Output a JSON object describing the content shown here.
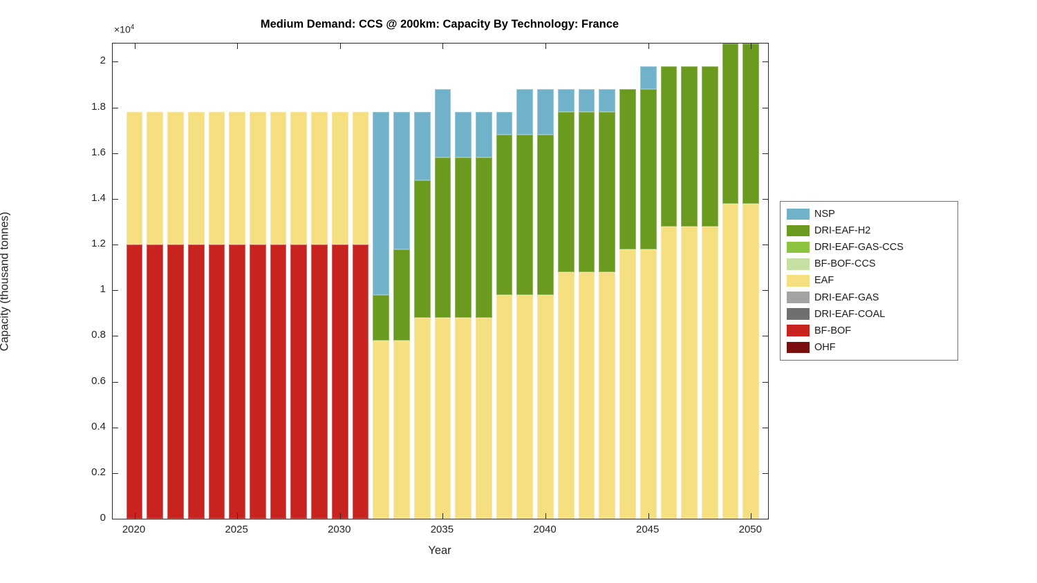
{
  "figure": {
    "title": "Medium Demand: CCS @ 200km: Capacity By Technology: France",
    "xlabel": "Year",
    "ylabel": "Capacity (thousand tonnes)",
    "y_multiplier_base": "×10",
    "y_multiplier_exp": "4"
  },
  "chart_data": {
    "type": "bar",
    "stacked": true,
    "title": "Medium Demand: CCS @ 200km: Capacity By Technology: France",
    "xlabel": "Year",
    "ylabel": "Capacity (thousand tonnes)",
    "y_unit_note": "axis labels are value/10^4 (×10^4 multiplier shown top-left)",
    "grid": false,
    "legend_position": "right-outside",
    "bar_width_fraction": 0.8,
    "xlim": [
      2018.94,
      2050.83
    ],
    "ylim": [
      0,
      20800
    ],
    "xticks": [
      2020,
      2025,
      2030,
      2035,
      2040,
      2045,
      2050
    ],
    "yticks": {
      "values": [
        0,
        2000,
        4000,
        6000,
        8000,
        10000,
        12000,
        14000,
        16000,
        18000,
        20000
      ],
      "labels": [
        "0",
        "0.2",
        "0.4",
        "0.6",
        "0.8",
        "1",
        "1.2",
        "1.4",
        "1.6",
        "1.8",
        "2"
      ]
    },
    "years": [
      2020,
      2021,
      2022,
      2023,
      2024,
      2025,
      2026,
      2027,
      2028,
      2029,
      2030,
      2031,
      2032,
      2033,
      2034,
      2035,
      2036,
      2037,
      2038,
      2039,
      2040,
      2041,
      2042,
      2043,
      2044,
      2045,
      2046,
      2047,
      2048,
      2049,
      2050
    ],
    "series_note": "series listed in legend order (top of visual stack first); stacking bottom-to-top is the reverse of this order",
    "series": [
      {
        "name": "NSP",
        "color": "#6FB2C9",
        "values": [
          0,
          0,
          0,
          0,
          0,
          0,
          0,
          0,
          0,
          0,
          0,
          0,
          8000,
          6000,
          3000,
          3000,
          2000,
          2000,
          1000,
          2000,
          2000,
          1000,
          1000,
          1000,
          0,
          1000,
          0,
          0,
          0,
          0,
          0
        ]
      },
      {
        "name": "DRI-EAF-H2",
        "color": "#6A9B1F",
        "values": [
          0,
          0,
          0,
          0,
          0,
          0,
          0,
          0,
          0,
          0,
          0,
          0,
          2000,
          4000,
          6000,
          7000,
          7000,
          7000,
          7000,
          7000,
          7000,
          7000,
          7000,
          7000,
          7000,
          7000,
          7000,
          7000,
          7000,
          7000,
          7000
        ]
      },
      {
        "name": "DRI-EAF-GAS-CCS",
        "color": "#8CC43F",
        "values": [
          0,
          0,
          0,
          0,
          0,
          0,
          0,
          0,
          0,
          0,
          0,
          0,
          0,
          0,
          0,
          0,
          0,
          0,
          0,
          0,
          0,
          0,
          0,
          0,
          0,
          0,
          0,
          0,
          0,
          0,
          0
        ]
      },
      {
        "name": "BF-BOF-CCS",
        "color": "#C6E0A4",
        "values": [
          0,
          0,
          0,
          0,
          0,
          0,
          0,
          0,
          0,
          0,
          0,
          0,
          0,
          0,
          0,
          0,
          0,
          0,
          0,
          0,
          0,
          0,
          0,
          0,
          0,
          0,
          0,
          0,
          0,
          0,
          0
        ]
      },
      {
        "name": "EAF",
        "color": "#F6DF7E",
        "values": [
          5800,
          5800,
          5800,
          5800,
          5800,
          5800,
          5800,
          5800,
          5800,
          5800,
          5800,
          5800,
          7800,
          7800,
          8800,
          8800,
          8800,
          8800,
          9800,
          9800,
          9800,
          10800,
          10800,
          10800,
          11800,
          11800,
          12800,
          12800,
          12800,
          13800,
          13800
        ]
      },
      {
        "name": "DRI-EAF-GAS",
        "color": "#A3A3A3",
        "values": [
          0,
          0,
          0,
          0,
          0,
          0,
          0,
          0,
          0,
          0,
          0,
          0,
          0,
          0,
          0,
          0,
          0,
          0,
          0,
          0,
          0,
          0,
          0,
          0,
          0,
          0,
          0,
          0,
          0,
          0,
          0
        ]
      },
      {
        "name": "DRI-EAF-COAL",
        "color": "#6F6F6F",
        "values": [
          0,
          0,
          0,
          0,
          0,
          0,
          0,
          0,
          0,
          0,
          0,
          0,
          0,
          0,
          0,
          0,
          0,
          0,
          0,
          0,
          0,
          0,
          0,
          0,
          0,
          0,
          0,
          0,
          0,
          0,
          0
        ]
      },
      {
        "name": "BF-BOF",
        "color": "#C8231F",
        "values": [
          12000,
          12000,
          12000,
          12000,
          12000,
          12000,
          12000,
          12000,
          12000,
          12000,
          12000,
          12000,
          0,
          0,
          0,
          0,
          0,
          0,
          0,
          0,
          0,
          0,
          0,
          0,
          0,
          0,
          0,
          0,
          0,
          0,
          0
        ]
      },
      {
        "name": "OHF",
        "color": "#7D0E10",
        "values": [
          0,
          0,
          0,
          0,
          0,
          0,
          0,
          0,
          0,
          0,
          0,
          0,
          0,
          0,
          0,
          0,
          0,
          0,
          0,
          0,
          0,
          0,
          0,
          0,
          0,
          0,
          0,
          0,
          0,
          0,
          0
        ]
      }
    ]
  }
}
